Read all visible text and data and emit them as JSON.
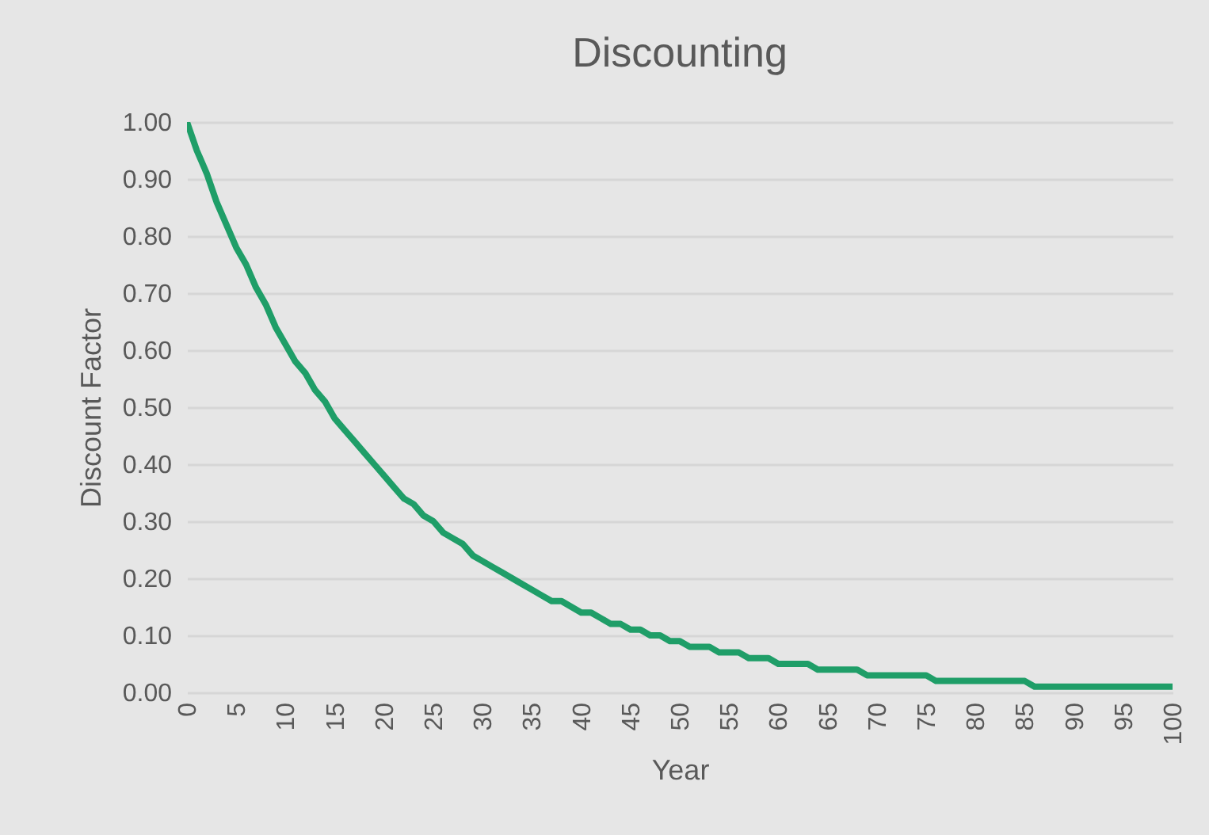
{
  "chart_data": {
    "type": "line",
    "title": "Discounting",
    "xlabel": "Year",
    "ylabel": "Discount  Factor",
    "x": [
      0,
      1,
      2,
      3,
      4,
      5,
      6,
      7,
      8,
      9,
      10,
      11,
      12,
      13,
      14,
      15,
      16,
      17,
      18,
      19,
      20,
      21,
      22,
      23,
      24,
      25,
      26,
      27,
      28,
      29,
      30,
      31,
      32,
      33,
      34,
      35,
      36,
      37,
      38,
      39,
      40,
      41,
      42,
      43,
      44,
      45,
      46,
      47,
      48,
      49,
      50,
      51,
      52,
      53,
      54,
      55,
      56,
      57,
      58,
      59,
      60,
      61,
      62,
      63,
      64,
      65,
      66,
      67,
      68,
      69,
      70,
      71,
      72,
      73,
      74,
      75,
      76,
      77,
      78,
      79,
      80,
      81,
      82,
      83,
      84,
      85,
      86,
      87,
      88,
      89,
      90,
      91,
      92,
      93,
      94,
      95,
      96,
      97,
      98,
      99,
      100
    ],
    "series": [
      {
        "color": "#1f9e68",
        "values": [
          1.0,
          0.95,
          0.91,
          0.86,
          0.82,
          0.78,
          0.75,
          0.71,
          0.68,
          0.64,
          0.61,
          0.58,
          0.56,
          0.53,
          0.51,
          0.48,
          0.46,
          0.44,
          0.42,
          0.4,
          0.38,
          0.36,
          0.34,
          0.33,
          0.31,
          0.3,
          0.28,
          0.27,
          0.26,
          0.24,
          0.23,
          0.22,
          0.21,
          0.2,
          0.19,
          0.18,
          0.17,
          0.16,
          0.16,
          0.15,
          0.14,
          0.14,
          0.13,
          0.12,
          0.12,
          0.11,
          0.11,
          0.1,
          0.1,
          0.09,
          0.09,
          0.08,
          0.08,
          0.08,
          0.07,
          0.07,
          0.07,
          0.06,
          0.06,
          0.06,
          0.05,
          0.05,
          0.05,
          0.05,
          0.04,
          0.04,
          0.04,
          0.04,
          0.04,
          0.03,
          0.03,
          0.03,
          0.03,
          0.03,
          0.03,
          0.03,
          0.02,
          0.02,
          0.02,
          0.02,
          0.02,
          0.02,
          0.02,
          0.02,
          0.02,
          0.02,
          0.01,
          0.01,
          0.01,
          0.01,
          0.01,
          0.01,
          0.01,
          0.01,
          0.01,
          0.01,
          0.01,
          0.01,
          0.01,
          0.01,
          0.01
        ]
      }
    ],
    "xlim": [
      0,
      100
    ],
    "xticks": [
      0,
      5,
      10,
      15,
      20,
      25,
      30,
      35,
      40,
      45,
      50,
      55,
      60,
      65,
      70,
      75,
      80,
      85,
      90,
      95,
      100
    ],
    "ylim": [
      0,
      1
    ],
    "yticks": [
      {
        "value": 0,
        "label": "0.00"
      },
      {
        "value": 0.1,
        "label": "0.10"
      },
      {
        "value": 0.2,
        "label": "0.20"
      },
      {
        "value": 0.3,
        "label": "0.30"
      },
      {
        "value": 0.4,
        "label": "0.40"
      },
      {
        "value": 0.5,
        "label": "0.50"
      },
      {
        "value": 0.6,
        "label": "0.60"
      },
      {
        "value": 0.7,
        "label": "0.70"
      },
      {
        "value": 0.8,
        "label": "0.80"
      },
      {
        "value": 0.9,
        "label": "0.90"
      },
      {
        "value": 1,
        "label": "1.00"
      }
    ],
    "grid": "y",
    "marker": "none",
    "line_style": "solid"
  }
}
